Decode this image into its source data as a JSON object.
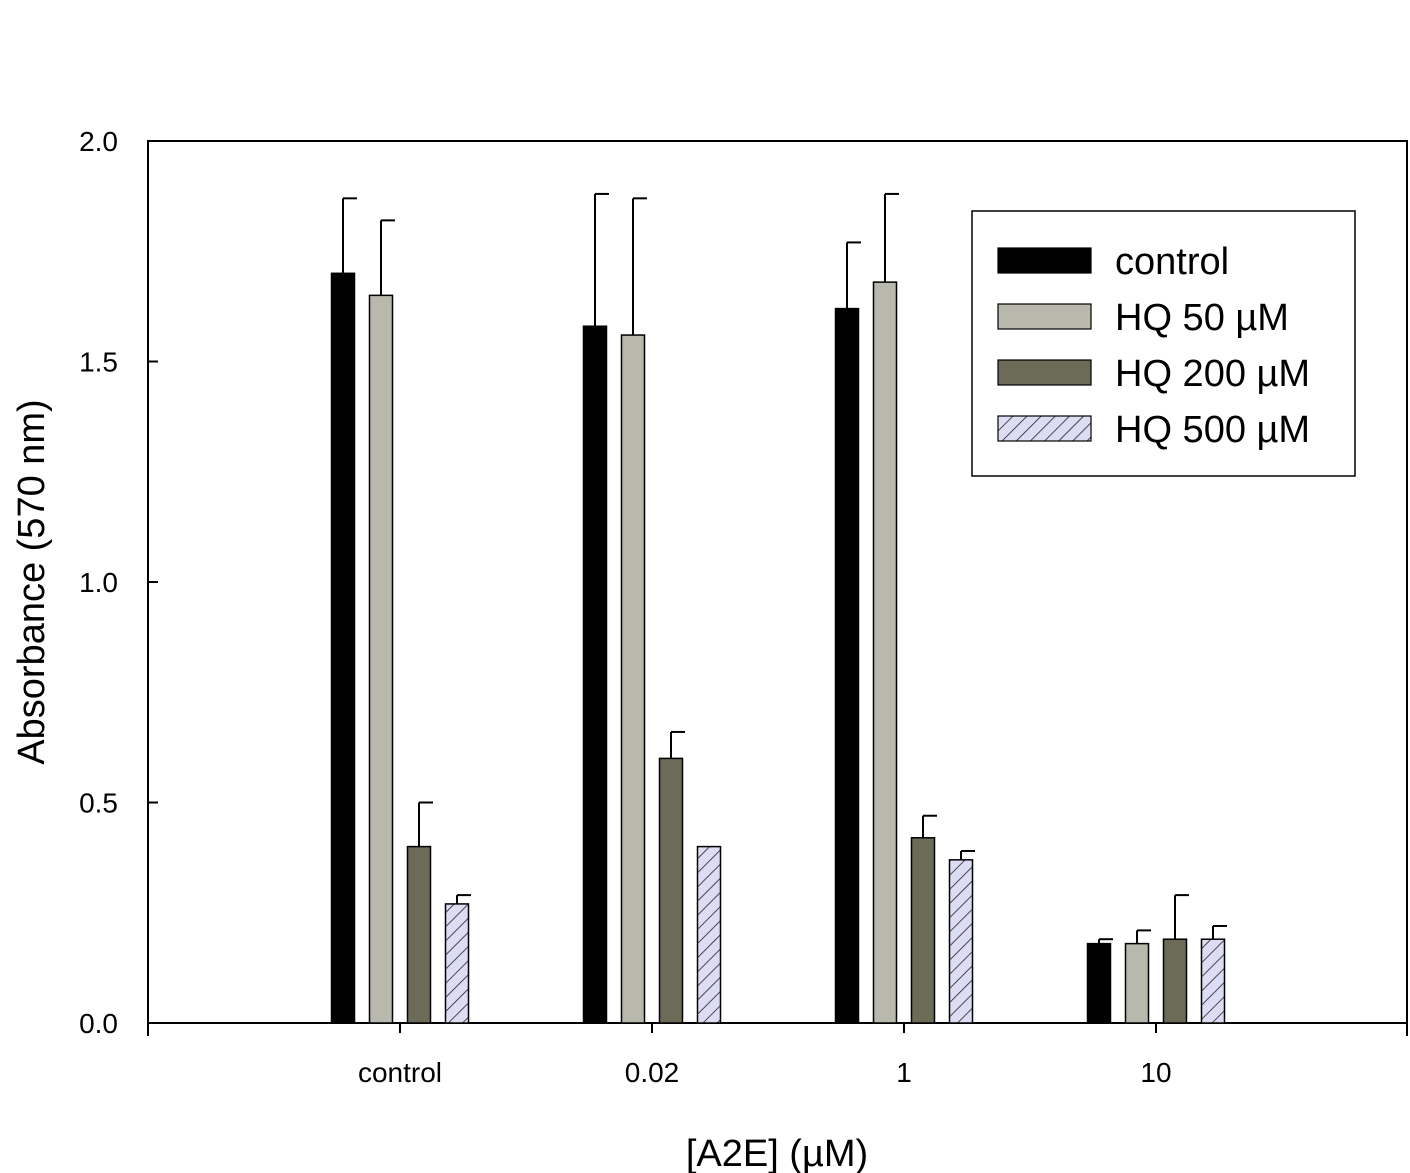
{
  "chart_data": {
    "type": "bar",
    "title": "",
    "xlabel": "[A2E] (µM)",
    "ylabel": "Absorbance (570 nm)",
    "categories": [
      "control",
      "0.02",
      "1",
      "10"
    ],
    "ylim": [
      0,
      2.0
    ],
    "yticks": [
      "0.0",
      "0.5",
      "1.0",
      "1.5",
      "2.0"
    ],
    "ytick_values": [
      0,
      0.5,
      1.0,
      1.5,
      2.0
    ],
    "grid": false,
    "legend_position": "top-right",
    "error_bars": "upper",
    "series": [
      {
        "name": "control",
        "values": [
          1.7,
          1.58,
          1.62,
          0.18
        ],
        "errors": [
          0.17,
          0.3,
          0.15,
          0.01
        ],
        "color": "#000000",
        "pattern": "solid"
      },
      {
        "name": "HQ 50 µM",
        "values": [
          1.65,
          1.56,
          1.68,
          0.18
        ],
        "errors": [
          0.17,
          0.31,
          0.2,
          0.03
        ],
        "color": "#b8b8ac",
        "pattern": "solid"
      },
      {
        "name": "HQ 200 µM",
        "values": [
          0.4,
          0.6,
          0.42,
          0.19
        ],
        "errors": [
          0.1,
          0.06,
          0.05,
          0.1
        ],
        "color": "#6b6b57",
        "pattern": "solid"
      },
      {
        "name": "HQ 500 µM",
        "values": [
          0.27,
          0.4,
          0.37,
          0.19
        ],
        "errors": [
          0.02,
          0.0,
          0.02,
          0.03
        ],
        "color": "#dcdcf4",
        "pattern": "hatched"
      }
    ]
  }
}
